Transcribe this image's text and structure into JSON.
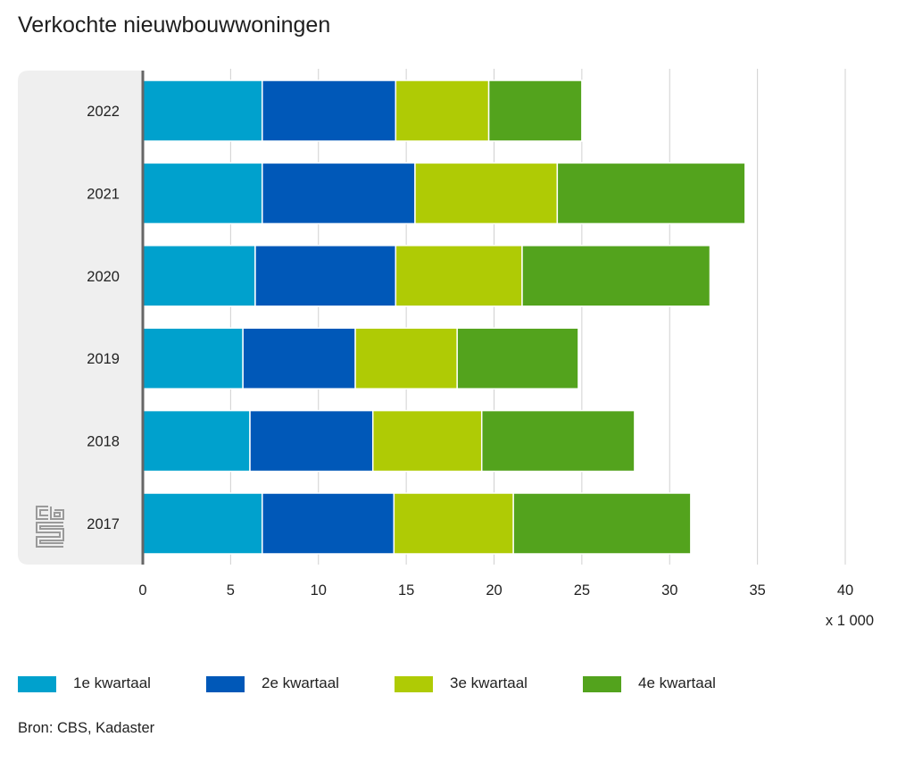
{
  "title": "Verkochte nieuwbouwwoningen",
  "source": "Bron: CBS, Kadaster",
  "logo": "cbs-logo-icon",
  "chart_data": {
    "type": "bar",
    "orientation": "horizontal",
    "stacked": true,
    "title": "Verkochte nieuwbouwwoningen",
    "xlabel": "x 1 000",
    "ylabel": "",
    "categories": [
      "2022",
      "2021",
      "2020",
      "2019",
      "2018",
      "2017"
    ],
    "series": [
      {
        "name": "1e kwartaal",
        "color": "#00a1cd",
        "values": [
          6.8,
          6.8,
          6.4,
          5.7,
          6.1,
          6.8
        ]
      },
      {
        "name": "2e kwartaal",
        "color": "#0058b8",
        "values": [
          7.6,
          8.7,
          8.0,
          6.4,
          7.0,
          7.5
        ]
      },
      {
        "name": "3e kwartaal",
        "color": "#afcb05",
        "values": [
          5.3,
          8.1,
          7.2,
          5.8,
          6.2,
          6.8
        ]
      },
      {
        "name": "4e kwartaal",
        "color": "#53a31d",
        "values": [
          5.3,
          10.7,
          10.7,
          6.9,
          8.7,
          10.1
        ]
      }
    ],
    "xlim": [
      0,
      40
    ],
    "xticks": [
      "0",
      "5",
      "10",
      "15",
      "20",
      "25",
      "30",
      "35",
      "40"
    ],
    "xtick_values": [
      0,
      5,
      10,
      15,
      20,
      25,
      30,
      35,
      40
    ],
    "grid": true,
    "legend_position": "bottom"
  }
}
